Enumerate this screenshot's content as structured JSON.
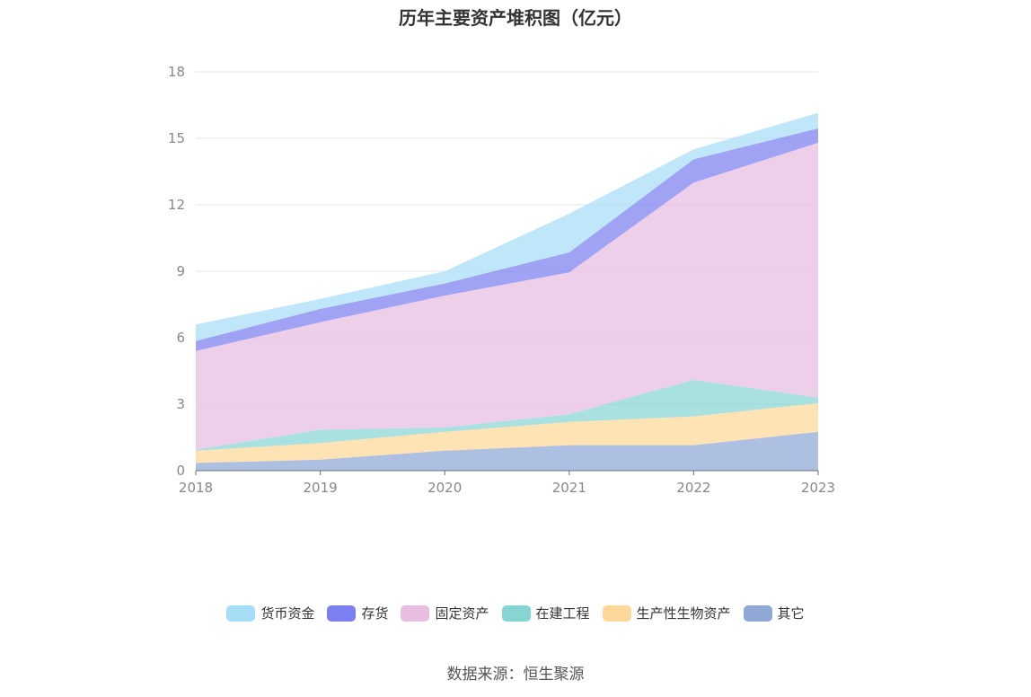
{
  "chart_data": {
    "type": "area",
    "stacked": true,
    "title": "历年主要资产堆积图（亿元）",
    "categories": [
      "2018",
      "2019",
      "2020",
      "2021",
      "2022",
      "2023"
    ],
    "ylim": [
      0,
      18
    ],
    "yticks": [
      0,
      3,
      6,
      9,
      12,
      15,
      18
    ],
    "grid": true,
    "legend_position": "bottom",
    "series": [
      {
        "name": "其它",
        "color": "#8fa8d6",
        "values": [
          0.35,
          0.5,
          0.9,
          1.15,
          1.15,
          1.75
        ]
      },
      {
        "name": "生产性生物资产",
        "color": "#ffd899",
        "values": [
          0.55,
          0.75,
          0.85,
          1.05,
          1.3,
          1.3
        ]
      },
      {
        "name": "在建工程",
        "color": "#86d5d3",
        "values": [
          0.05,
          0.6,
          0.2,
          0.35,
          1.65,
          0.25
        ]
      },
      {
        "name": "固定资产",
        "color": "#e8bde0",
        "values": [
          4.45,
          4.85,
          5.95,
          6.4,
          8.9,
          11.5
        ]
      },
      {
        "name": "存货",
        "color": "#7b7ff0",
        "values": [
          0.45,
          0.6,
          0.55,
          0.9,
          1.05,
          0.65
        ]
      },
      {
        "name": "货币资金",
        "color": "#a7def7",
        "values": [
          0.75,
          0.45,
          0.55,
          1.75,
          0.45,
          0.7
        ]
      }
    ]
  },
  "legend": {
    "items": [
      {
        "label": "货币资金",
        "color": "#a7def7"
      },
      {
        "label": "存货",
        "color": "#7b7ff0"
      },
      {
        "label": "固定资产",
        "color": "#e8bde0"
      },
      {
        "label": "在建工程",
        "color": "#86d5d3"
      },
      {
        "label": "生产性生物资产",
        "color": "#ffd899"
      },
      {
        "label": "其它",
        "color": "#8fa8d6"
      }
    ]
  },
  "source": "数据来源：恒生聚源"
}
